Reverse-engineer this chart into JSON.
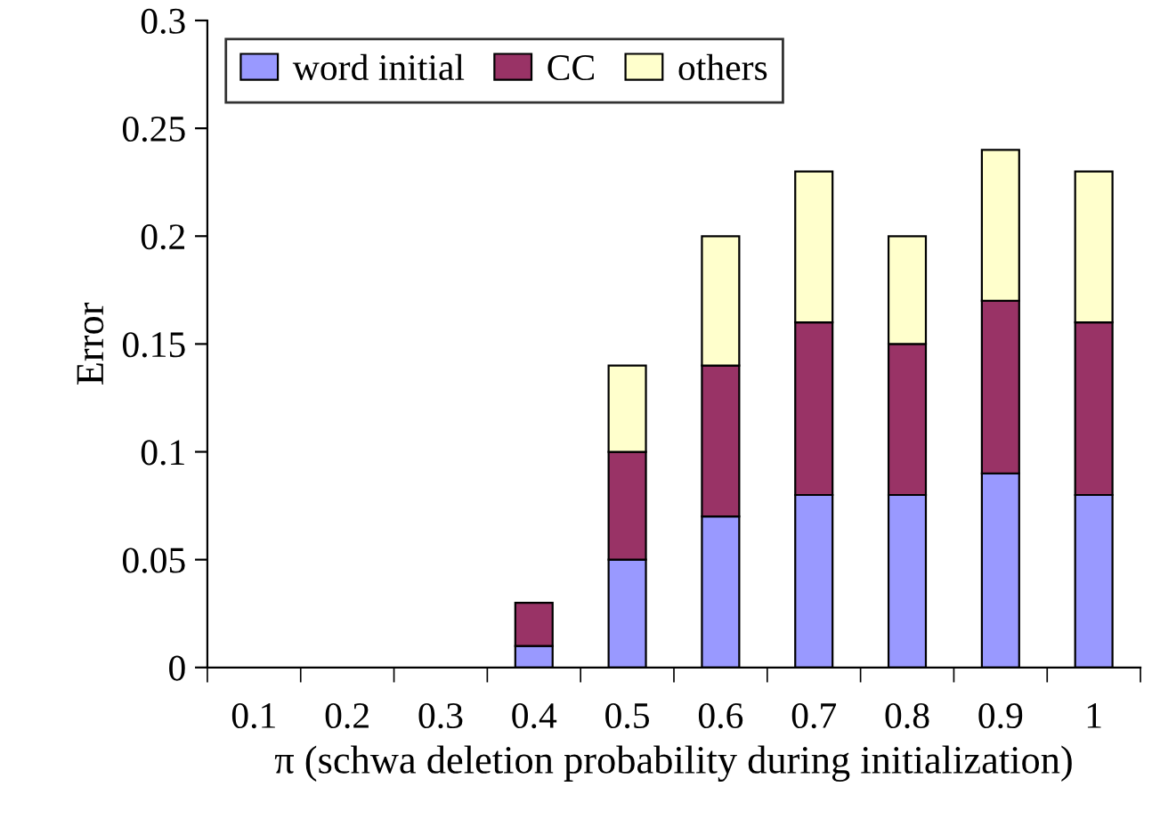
{
  "chart_data": {
    "type": "bar",
    "stacked": true,
    "xlabel": "π (schwa deletion probability during initialization)",
    "ylabel": "Error",
    "categories": [
      "0.1",
      "0.2",
      "0.3",
      "0.4",
      "0.5",
      "0.6",
      "0.7",
      "0.8",
      "0.9",
      "1"
    ],
    "series": [
      {
        "name": "word initial",
        "color": "#9999ff",
        "values": [
          null,
          null,
          null,
          0.01,
          0.05,
          0.07,
          0.08,
          0.08,
          0.09,
          0.08
        ]
      },
      {
        "name": "CC",
        "color": "#993366",
        "values": [
          null,
          null,
          null,
          0.02,
          0.05,
          0.07,
          0.08,
          0.07,
          0.08,
          0.08
        ]
      },
      {
        "name": "others",
        "color": "#ffffcc",
        "values": [
          null,
          null,
          null,
          null,
          0.04,
          0.06,
          0.07,
          0.05,
          0.07,
          0.07
        ]
      }
    ],
    "ylim": [
      0,
      0.3
    ],
    "yticks": [
      0,
      0.05,
      0.1,
      0.15,
      0.2,
      0.25,
      0.3
    ],
    "grid": false,
    "legend": "top left"
  }
}
